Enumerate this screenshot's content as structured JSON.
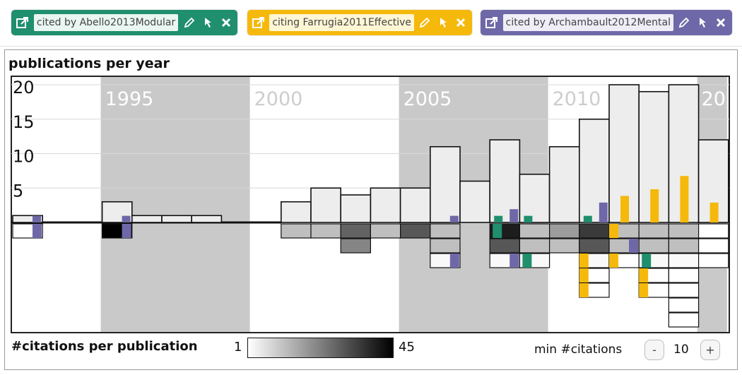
{
  "tags": [
    {
      "label": "cited by Abello2013Modular",
      "color": "#1f8f6e",
      "labelBg": "#e9f6f1"
    },
    {
      "label": "citing Farrugia2011Effective",
      "color": "#f5b90c",
      "labelBg": "#fff6d4"
    },
    {
      "label": "cited by Archambault2012Mental",
      "color": "#6f68a8",
      "labelBg": "#efeef7"
    }
  ],
  "chart_data": {
    "type": "bar",
    "title": "publications per year",
    "x_start": 1992,
    "x_end": 2015,
    "era_labels": [
      "1995",
      "2000",
      "2005",
      "2010",
      "20"
    ],
    "y_ticks": [
      "20",
      "15",
      "10",
      "5"
    ],
    "ylim": [
      0,
      20
    ],
    "publications_per_year": [
      {
        "year": 1992,
        "count": 1
      },
      {
        "year": 1993,
        "count": 0
      },
      {
        "year": 1994,
        "count": 0
      },
      {
        "year": 1995,
        "count": 3
      },
      {
        "year": 1996,
        "count": 1
      },
      {
        "year": 1997,
        "count": 1
      },
      {
        "year": 1998,
        "count": 1
      },
      {
        "year": 1999,
        "count": 0
      },
      {
        "year": 2000,
        "count": 0
      },
      {
        "year": 2001,
        "count": 3
      },
      {
        "year": 2002,
        "count": 5
      },
      {
        "year": 2003,
        "count": 4
      },
      {
        "year": 2004,
        "count": 5
      },
      {
        "year": 2005,
        "count": 5
      },
      {
        "year": 2006,
        "count": 11
      },
      {
        "year": 2007,
        "count": 6
      },
      {
        "year": 2008,
        "count": 12
      },
      {
        "year": 2009,
        "count": 7
      },
      {
        "year": 2010,
        "count": 11
      },
      {
        "year": 2011,
        "count": 15
      },
      {
        "year": 2012,
        "count": 20
      },
      {
        "year": 2013,
        "count": 19
      },
      {
        "year": 2014,
        "count": 20
      },
      {
        "year": 2015,
        "count": 12
      }
    ],
    "series_indicators": [
      {
        "year": 1992,
        "series": "cited by Archambault2012Mental",
        "value": 1
      },
      {
        "year": 1995,
        "series": "cited by Archambault2012Mental",
        "value": 1
      },
      {
        "year": 2006,
        "series": "cited by Archambault2012Mental",
        "value": 1
      },
      {
        "year": 2008,
        "series": "cited by Abello2013Modular",
        "value": 1
      },
      {
        "year": 2008,
        "series": "cited by Archambault2012Mental",
        "value": 2
      },
      {
        "year": 2009,
        "series": "cited by Abello2013Modular",
        "value": 1
      },
      {
        "year": 2011,
        "series": "cited by Abello2013Modular",
        "value": 1
      },
      {
        "year": 2011,
        "series": "cited by Archambault2012Mental",
        "value": 3
      },
      {
        "year": 2012,
        "series": "citing Farrugia2011Effective",
        "value": 4
      },
      {
        "year": 2013,
        "series": "citing Farrugia2011Effective",
        "value": 5
      },
      {
        "year": 2014,
        "series": "citing Farrugia2011Effective",
        "value": 7
      },
      {
        "year": 2015,
        "series": "citing Farrugia2011Effective",
        "value": 3
      }
    ],
    "citation_cells": [
      {
        "year": 1992,
        "cells": [
          {
            "shade": 1,
            "marker": "cited by Archambault2012Mental"
          }
        ]
      },
      {
        "year": 1995,
        "cells": [
          {
            "shade": 45,
            "marker": "cited by Archambault2012Mental"
          }
        ]
      },
      {
        "year": 2001,
        "cells": [
          {
            "shade": 12
          }
        ]
      },
      {
        "year": 2002,
        "cells": [
          {
            "shade": 12
          }
        ]
      },
      {
        "year": 2003,
        "cells": [
          {
            "shade": 28
          },
          {
            "shade": 22
          }
        ]
      },
      {
        "year": 2004,
        "cells": [
          {
            "shade": 12
          }
        ]
      },
      {
        "year": 2005,
        "cells": [
          {
            "shade": 30
          }
        ]
      },
      {
        "year": 2006,
        "cells": [
          {
            "shade": 12
          },
          {
            "shade": 12
          },
          {
            "shade": 2,
            "marker": "cited by Archambault2012Mental"
          }
        ]
      },
      {
        "year": 2008,
        "cells": [
          {
            "shade": 40,
            "marker": "cited by Abello2013Modular"
          },
          {
            "shade": 30
          },
          {
            "shade": 2,
            "marker": "cited by Archambault2012Mental"
          }
        ]
      },
      {
        "year": 2009,
        "cells": [
          {
            "shade": 12
          },
          {
            "shade": 12
          },
          {
            "shade": 2,
            "marker": "cited by Abello2013Modular"
          }
        ]
      },
      {
        "year": 2010,
        "cells": [
          {
            "shade": 18
          },
          {
            "shade": 12
          }
        ]
      },
      {
        "year": 2011,
        "cells": [
          {
            "shade": 35
          },
          {
            "shade": 30
          },
          {
            "shade": 2,
            "marker": "citing Farrugia2011Effective"
          },
          {
            "shade": 1,
            "marker": "citing Farrugia2011Effective"
          },
          {
            "shade": 1,
            "marker": "citing Farrugia2011Effective"
          }
        ]
      },
      {
        "year": 2012,
        "cells": [
          {
            "shade": 12,
            "marker": "citing Farrugia2011Effective"
          },
          {
            "shade": 12,
            "marker": "cited by Archambault2012Mental"
          },
          {
            "shade": 1,
            "marker": "citing Farrugia2011Effective"
          }
        ]
      },
      {
        "year": 2013,
        "cells": [
          {
            "shade": 12
          },
          {
            "shade": 12
          },
          {
            "shade": 2,
            "marker": "cited by Abello2013Modular"
          },
          {
            "shade": 1,
            "marker": "citing Farrugia2011Effective"
          },
          {
            "shade": 1,
            "marker": "citing Farrugia2011Effective"
          }
        ]
      },
      {
        "year": 2014,
        "cells": [
          {
            "shade": 12
          },
          {
            "shade": 12
          },
          {
            "shade": 2
          },
          {
            "shade": 1
          },
          {
            "shade": 1
          },
          {
            "shade": 1
          },
          {
            "shade": 1
          }
        ]
      },
      {
        "year": 2015,
        "cells": [
          {
            "shade": 1
          },
          {
            "shade": 1
          },
          {
            "shade": 1
          }
        ]
      }
    ]
  },
  "legend": {
    "title": "#citations per publication",
    "min": "1",
    "max": "45"
  },
  "controls": {
    "min_label": "min #citations",
    "minus": "-",
    "value": "10",
    "plus": "+"
  },
  "colors": {
    "grid_band": "#c9c9c9",
    "bar_fill": "#ededed",
    "green": "#1f8f6e",
    "yellow": "#f5b90c",
    "purple": "#6f68a8"
  }
}
